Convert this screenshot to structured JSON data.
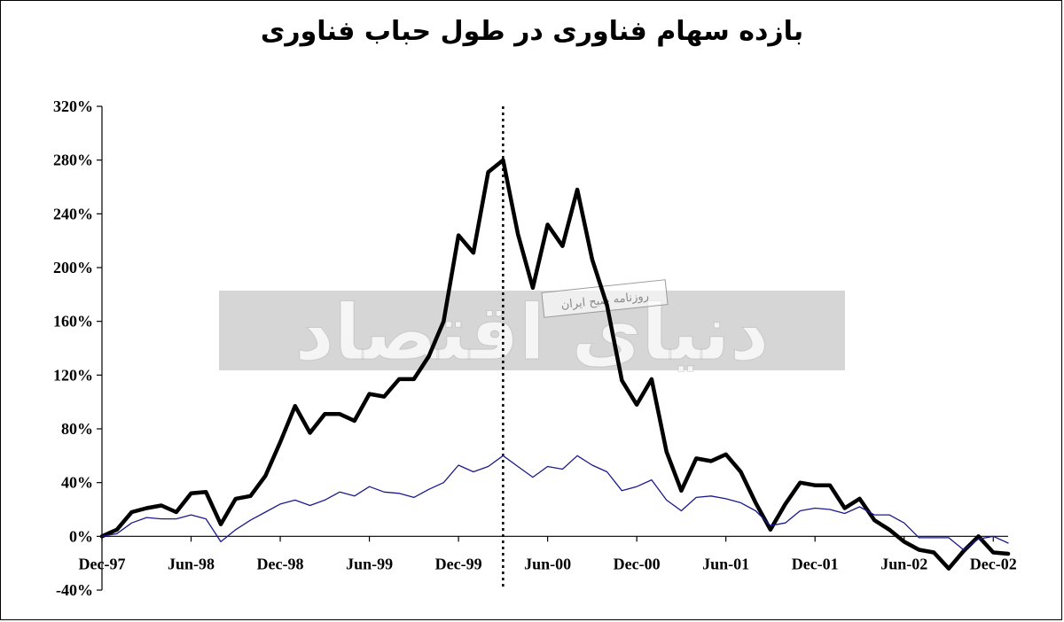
{
  "chart_data": {
    "type": "line",
    "title": "بازده سهام فناوری در طول حباب فناوری",
    "xlabel": "",
    "ylabel": "",
    "ylim": [
      -40,
      320
    ],
    "y_ticks": [
      "320%",
      "280%",
      "240%",
      "200%",
      "160%",
      "120%",
      "80%",
      "40%",
      "0%",
      "-40%"
    ],
    "y_tick_values": [
      320,
      280,
      240,
      200,
      160,
      120,
      80,
      40,
      0,
      -40
    ],
    "x_ticks": [
      "Dec-97",
      "Jun-98",
      "Dec-98",
      "Jun-99",
      "Dec-99",
      "Jun-00",
      "Dec-00",
      "Jun-01",
      "Dec-01",
      "Jun-02",
      "Dec-02"
    ],
    "x_range": [
      "Dec-97",
      "Dec-02"
    ],
    "marker_date": "Mar-00",
    "grid": false,
    "legend": "none",
    "series": [
      {
        "color": "#000000",
        "values": [
          0,
          5,
          18,
          21,
          23,
          18,
          32,
          33,
          9,
          28,
          30,
          45,
          70,
          97,
          77,
          91,
          91,
          86,
          106,
          104,
          117,
          117,
          134,
          160,
          224,
          211,
          271,
          280,
          225,
          185,
          232,
          216,
          258,
          206,
          172,
          116,
          98,
          117,
          63,
          34,
          58,
          56,
          61,
          48,
          25,
          5,
          24,
          40,
          38,
          38,
          21,
          28,
          12,
          5,
          -4,
          -10,
          -12,
          -24,
          -11,
          0,
          -12,
          -13
        ]
      },
      {
        "color": "#1a1a8c",
        "values": [
          0,
          2,
          10,
          14,
          13,
          13,
          16,
          13,
          -4,
          5,
          12,
          18,
          24,
          27,
          23,
          27,
          33,
          30,
          37,
          33,
          32,
          29,
          35,
          40,
          53,
          48,
          52,
          60,
          52,
          44,
          52,
          50,
          60,
          53,
          48,
          34,
          37,
          42,
          27,
          19,
          29,
          30,
          28,
          25,
          19,
          8,
          10,
          19,
          21,
          20,
          17,
          22,
          16,
          16,
          10,
          -1,
          -1,
          -1,
          -10,
          -2,
          0,
          -5
        ]
      }
    ]
  },
  "watermark": {
    "brand": "دنیای اقتصاد",
    "subtitle": "روزنامه صبح ایران"
  }
}
